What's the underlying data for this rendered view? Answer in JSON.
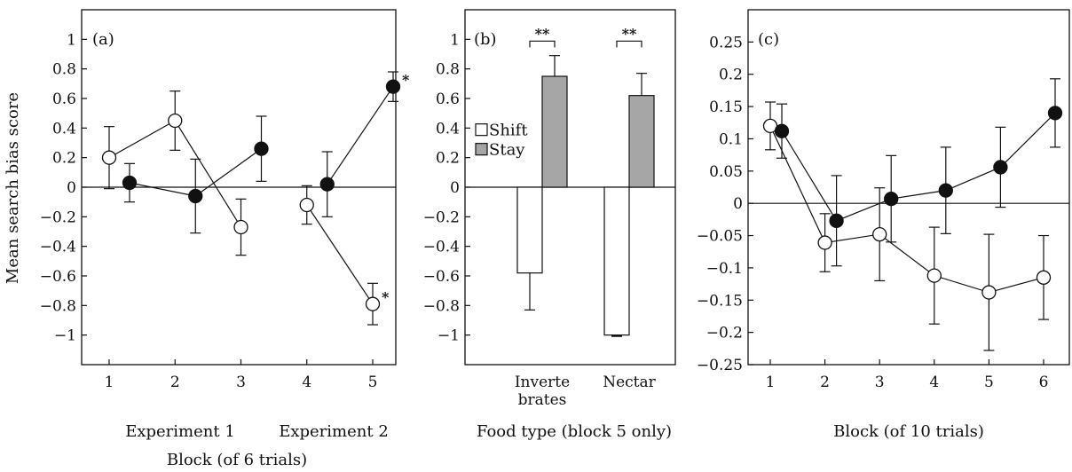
{
  "figure": {
    "ylabel_shared": "Mean search bias score"
  },
  "chart_data": [
    {
      "id": "a",
      "type": "line",
      "panel_label": "(a)",
      "xlabel": "Block (of 6 trials)",
      "group_labels": [
        "Experiment 1",
        "Experiment 2"
      ],
      "ylabel": "Mean search bias score",
      "ylim": [
        -1.2,
        1.2
      ],
      "yticks": [
        1,
        0.8,
        0.6,
        0.4,
        0.2,
        0,
        -0.2,
        -0.4,
        -0.6,
        -0.8,
        -1
      ],
      "ytick_labels": [
        "1",
        "0.8",
        "0.6",
        "0.4",
        "0.2",
        "0",
        "−0.2",
        "−0.4",
        "−0.6",
        "−0.8",
        "−1"
      ],
      "xticks": [
        1,
        2,
        3,
        4,
        5
      ],
      "xtick_labels": [
        "1",
        "2",
        "3",
        "4",
        "5"
      ],
      "series": [
        {
          "marker": "open",
          "segments": [
            [
              {
                "x": 1,
                "y": 0.2,
                "err": 0.21
              },
              {
                "x": 2,
                "y": 0.45,
                "err": 0.2
              },
              {
                "x": 3,
                "y": -0.27,
                "err": 0.19
              }
            ],
            [
              {
                "x": 4,
                "y": -0.12,
                "err": 0.13
              },
              {
                "x": 5,
                "y": -0.79,
                "err": 0.14
              }
            ]
          ]
        },
        {
          "marker": "filled",
          "segments": [
            [
              {
                "x": 1,
                "y": 0.03,
                "err": 0.13
              },
              {
                "x": 2,
                "y": -0.06,
                "err": 0.25
              },
              {
                "x": 3,
                "y": 0.26,
                "err": 0.22
              }
            ],
            [
              {
                "x": 4,
                "y": 0.02,
                "err": 0.22
              },
              {
                "x": 5,
                "y": 0.68,
                "err": 0.1
              }
            ]
          ]
        }
      ],
      "annotations": [
        {
          "text": "*",
          "x": 5,
          "y": 0.68
        },
        {
          "text": "*",
          "x": 5,
          "y": -0.79
        }
      ]
    },
    {
      "id": "b",
      "type": "bar",
      "panel_label": "(b)",
      "xlabel": "Food type (block 5 only)",
      "ylim": [
        -1.2,
        1.2
      ],
      "yticks": [
        1,
        0.8,
        0.6,
        0.4,
        0.2,
        0,
        -0.2,
        -0.4,
        -0.6,
        -0.8,
        -1
      ],
      "ytick_labels": [
        "1",
        "0.8",
        "0.6",
        "0.4",
        "0.2",
        "0",
        "−0.2",
        "−0.4",
        "−0.6",
        "−0.8",
        "−1"
      ],
      "categories": [
        [
          "Inverte",
          "brates"
        ],
        [
          "Nectar"
        ]
      ],
      "series": [
        {
          "name": "Shift",
          "color": "#ffffff",
          "values": [
            -0.58,
            -1.0
          ],
          "err": [
            0.25,
            0.005
          ]
        },
        {
          "name": "Stay",
          "color": "#a6a6a6",
          "values": [
            0.75,
            0.62
          ],
          "err": [
            0.14,
            0.15
          ]
        }
      ],
      "significance": [
        "**",
        "**"
      ]
    },
    {
      "id": "c",
      "type": "line",
      "panel_label": "(c)",
      "xlabel": "Block (of 10 trials)",
      "ylim": [
        -0.25,
        0.3
      ],
      "yticks": [
        0.25,
        0.2,
        0.15,
        0.1,
        0.05,
        0,
        -0.05,
        -0.1,
        -0.15,
        -0.2,
        -0.25
      ],
      "ytick_labels": [
        "0.25",
        "0.2",
        "0.15",
        "0.1",
        "0.05",
        "0",
        "−0.05",
        "−0.1",
        "−0.15",
        "−0.2",
        "−0.25"
      ],
      "xticks": [
        1,
        2,
        3,
        4,
        5,
        6
      ],
      "xtick_labels": [
        "1",
        "2",
        "3",
        "4",
        "5",
        "6"
      ],
      "series": [
        {
          "marker": "open",
          "segments": [
            [
              {
                "x": 1,
                "y": 0.12,
                "err": 0.037
              },
              {
                "x": 2,
                "y": -0.061,
                "err": 0.045
              },
              {
                "x": 3,
                "y": -0.048,
                "err": 0.072
              },
              {
                "x": 4,
                "y": -0.112,
                "err": 0.075
              },
              {
                "x": 5,
                "y": -0.138,
                "err": 0.09
              },
              {
                "x": 6,
                "y": -0.115,
                "err": 0.065
              }
            ]
          ]
        },
        {
          "marker": "filled",
          "segments": [
            [
              {
                "x": 1,
                "y": 0.112,
                "err": 0.042
              },
              {
                "x": 2,
                "y": -0.027,
                "err": 0.07
              },
              {
                "x": 3,
                "y": 0.007,
                "err": 0.067
              },
              {
                "x": 4,
                "y": 0.02,
                "err": 0.067
              },
              {
                "x": 5,
                "y": 0.056,
                "err": 0.062
              },
              {
                "x": 6,
                "y": 0.14,
                "err": 0.053
              }
            ]
          ]
        }
      ]
    }
  ]
}
